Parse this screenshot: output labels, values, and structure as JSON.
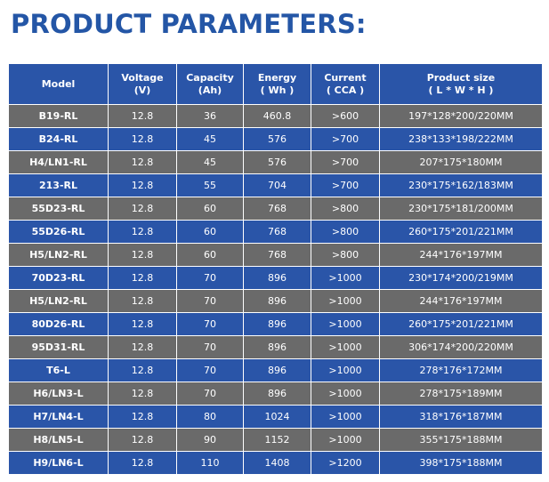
{
  "title": "PRODUCT PARAMETERS:",
  "table": {
    "header": [
      [
        "Model"
      ],
      [
        "Voltage",
        "(V)"
      ],
      [
        "Capacity",
        "(Ah)"
      ],
      [
        "Energy",
        "( Wh )"
      ],
      [
        "Current",
        "( CCA )"
      ],
      [
        "Product size",
        "( L * W * H )"
      ]
    ],
    "rows": [
      [
        "B19-RL",
        "12.8",
        "36",
        "460.8",
        ">600",
        "197*128*200/220MM"
      ],
      [
        "B24-RL",
        "12.8",
        "45",
        "576",
        ">700",
        "238*133*198/222MM"
      ],
      [
        "H4/LN1-RL",
        "12.8",
        "45",
        "576",
        ">700",
        "207*175*180MM"
      ],
      [
        "213-RL",
        "12.8",
        "55",
        "704",
        ">700",
        "230*175*162/183MM"
      ],
      [
        "55D23-RL",
        "12.8",
        "60",
        "768",
        ">800",
        "230*175*181/200MM"
      ],
      [
        "55D26-RL",
        "12.8",
        "60",
        "768",
        ">800",
        "260*175*201/221MM"
      ],
      [
        "H5/LN2-RL",
        "12.8",
        "60",
        "768",
        ">800",
        "244*176*197MM"
      ],
      [
        "70D23-RL",
        "12.8",
        "70",
        "896",
        ">1000",
        "230*174*200/219MM"
      ],
      [
        "H5/LN2-RL",
        "12.8",
        "70",
        "896",
        ">1000",
        "244*176*197MM"
      ],
      [
        "80D26-RL",
        "12.8",
        "70",
        "896",
        ">1000",
        "260*175*201/221MM"
      ],
      [
        "95D31-RL",
        "12.8",
        "70",
        "896",
        ">1000",
        "306*174*200/220MM"
      ],
      [
        "T6-L",
        "12.8",
        "70",
        "896",
        ">1000",
        "278*176*172MM"
      ],
      [
        "H6/LN3-L",
        "12.8",
        "70",
        "896",
        ">1000",
        "278*175*189MM"
      ],
      [
        "H7/LN4-L",
        "12.8",
        "80",
        "1024",
        ">1000",
        "318*176*187MM"
      ],
      [
        "H8/LN5-L",
        "12.8",
        "90",
        "1152",
        ">1000",
        "355*175*188MM"
      ],
      [
        "H9/LN6-L",
        "12.8",
        "110",
        "1408",
        ">1200",
        "398*175*188MM"
      ]
    ]
  }
}
